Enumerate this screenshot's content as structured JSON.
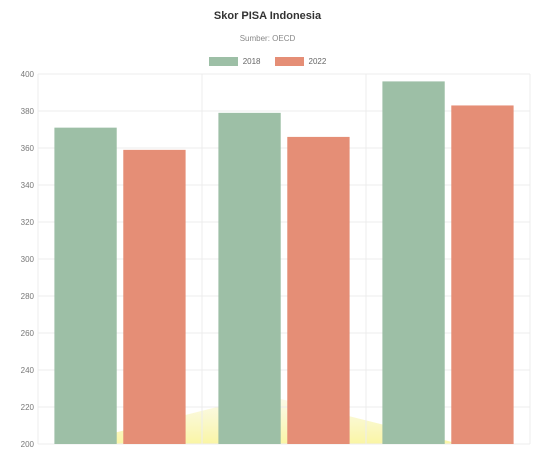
{
  "chart_data": {
    "type": "bar",
    "title": "Skor PISA Indonesia",
    "subtitle": "Sumber: OECD",
    "categories": [
      "",
      "",
      ""
    ],
    "series": [
      {
        "name": "2018",
        "values": [
          371,
          379,
          396
        ],
        "color": "#9dbfa6"
      },
      {
        "name": "2022",
        "values": [
          359,
          366,
          383
        ],
        "color": "#e58e76"
      }
    ],
    "ylim": [
      200,
      400
    ],
    "yticks": [
      200,
      220,
      240,
      260,
      280,
      300,
      320,
      340,
      360,
      380,
      400
    ],
    "xlabel": "",
    "ylabel": "",
    "grid": true,
    "legend_position": "top-center"
  }
}
